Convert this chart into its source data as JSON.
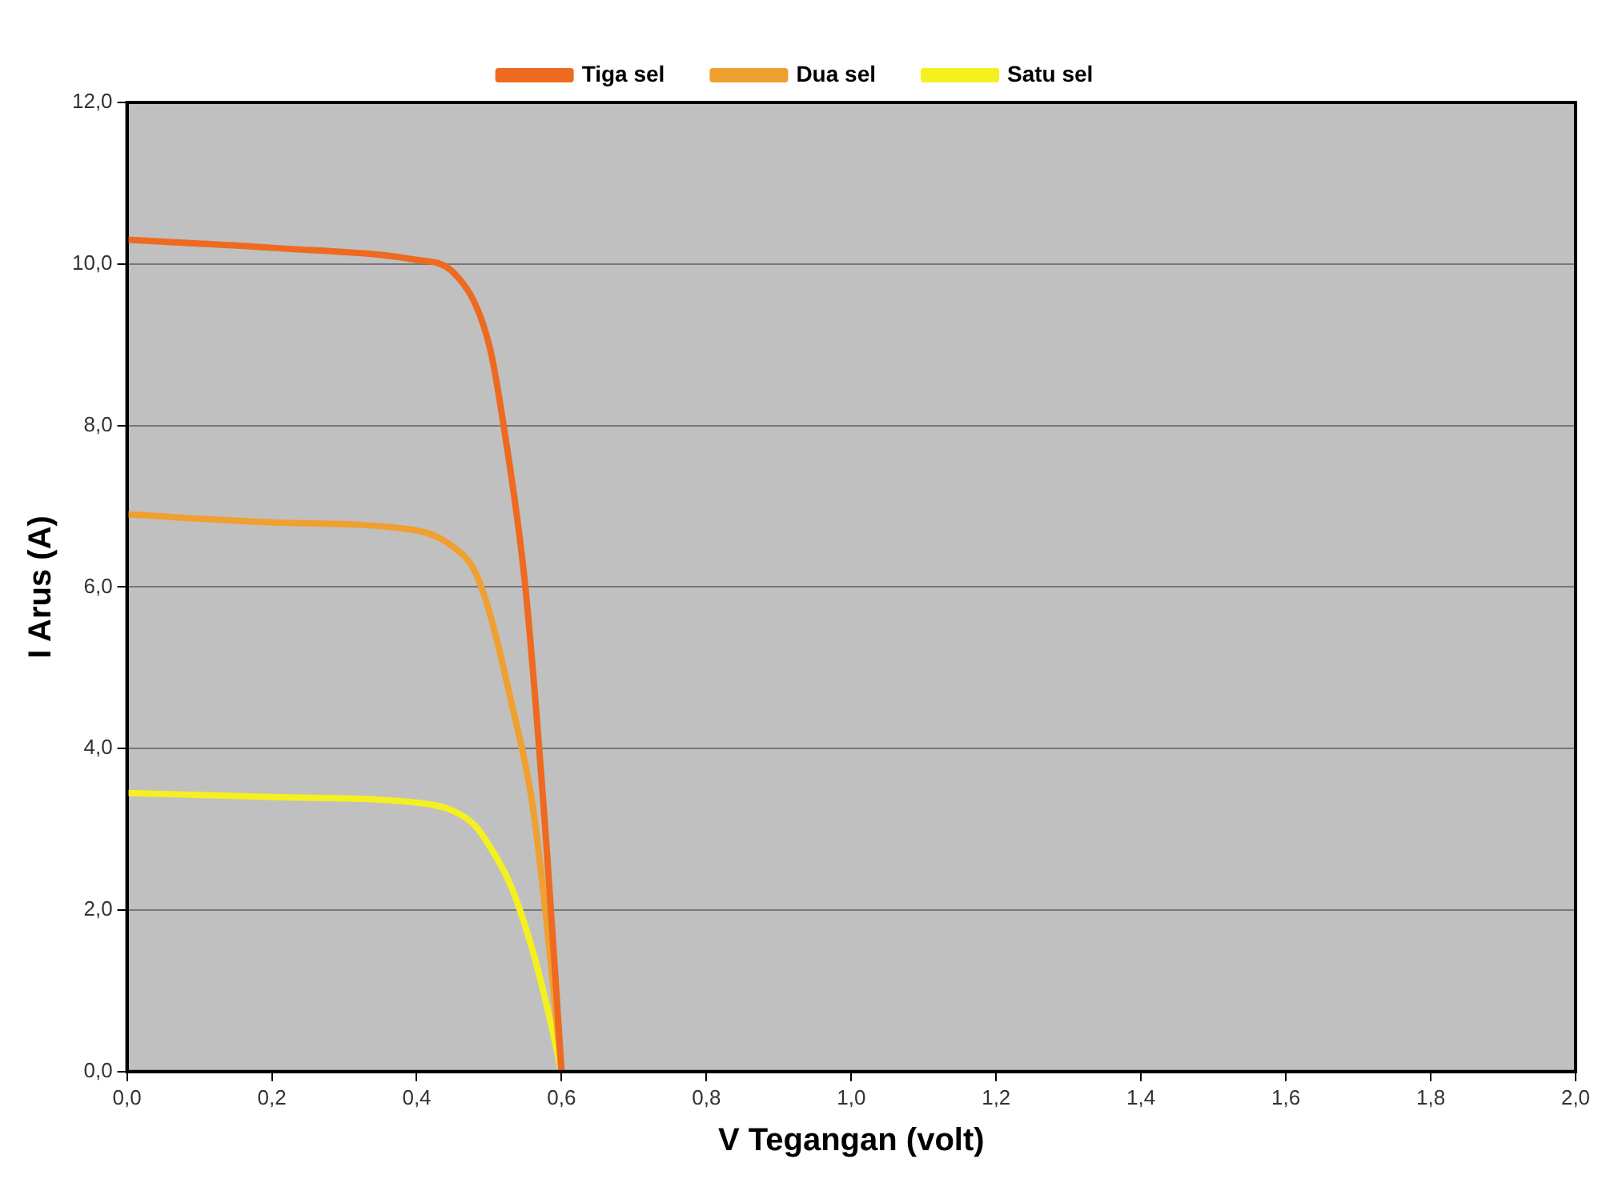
{
  "chart_data": {
    "type": "line",
    "xlabel": "V Tegangan (volt)",
    "ylabel": "I Arus (A)",
    "xlim": [
      0,
      2
    ],
    "xticks": [
      {
        "value": 0,
        "label": "0,0"
      },
      {
        "value": 0.2,
        "label": "0,2"
      },
      {
        "value": 0.4,
        "label": "0,4"
      },
      {
        "value": 0.6,
        "label": "0,6"
      },
      {
        "value": 0.8,
        "label": "0,8"
      },
      {
        "value": 1,
        "label": "1,0"
      },
      {
        "value": 1.2,
        "label": "1,2"
      },
      {
        "value": 1.4,
        "label": "1,4"
      },
      {
        "value": 1.6,
        "label": "1,6"
      },
      {
        "value": 1.8,
        "label": "1,8"
      },
      {
        "value": 2,
        "label": "2,0"
      }
    ],
    "ylim": [
      0,
      12
    ],
    "yticks": [
      {
        "value": 0,
        "label": "0,0"
      },
      {
        "value": 2,
        "label": "2,0"
      },
      {
        "value": 4,
        "label": "4,0"
      },
      {
        "value": 6,
        "label": "6,0"
      },
      {
        "value": 8,
        "label": "8,0"
      },
      {
        "value": 10,
        "label": "10,0"
      },
      {
        "value": 12,
        "label": "12,0"
      }
    ],
    "grid": "y",
    "legend": "top",
    "marker": "none",
    "line_style": "solid",
    "series": [
      {
        "name": "Tiga sel",
        "color": "#ee6a20",
        "x": [
          0,
          0.2,
          0.4,
          0.45,
          0.5,
          0.52,
          0.55,
          0.58,
          0.6
        ],
        "values": [
          10.3,
          10.2,
          10.05,
          9.9,
          9.0,
          8.0,
          6.0,
          2.7,
          0
        ]
      },
      {
        "name": "Dua sel",
        "color": "#f0a030",
        "x": [
          0,
          0.2,
          0.4,
          0.45,
          0.48,
          0.5,
          0.53,
          0.56,
          0.58,
          0.6
        ],
        "values": [
          6.9,
          6.8,
          6.7,
          6.5,
          6.2,
          5.7,
          4.6,
          3.3,
          1.8,
          0
        ]
      },
      {
        "name": "Satu sel",
        "color": "#f5f020",
        "x": [
          0,
          0.2,
          0.4,
          0.45,
          0.48,
          0.5,
          0.53,
          0.56,
          0.58,
          0.6
        ],
        "values": [
          3.45,
          3.4,
          3.33,
          3.23,
          3.05,
          2.8,
          2.3,
          1.5,
          0.8,
          0
        ]
      }
    ]
  }
}
